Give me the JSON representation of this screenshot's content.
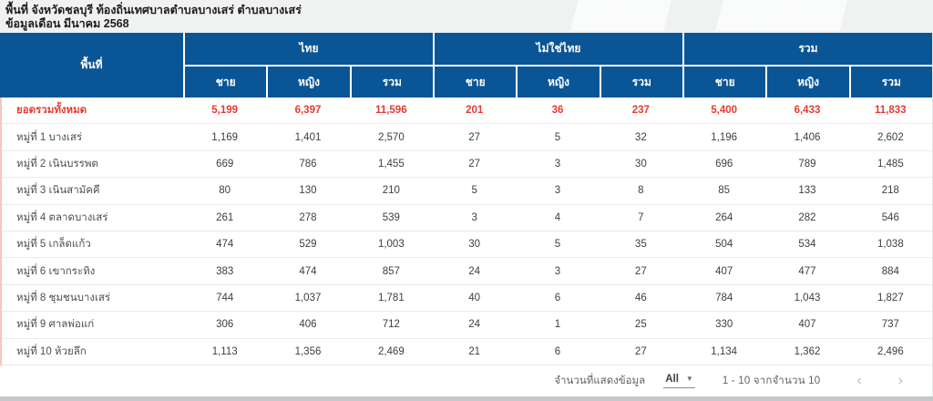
{
  "header": {
    "title": "พื้นที่ จังหวัดชลบุรี ท้องถิ่นเทศบาลตำบลบางเสร่ ตำบลบางเสร่",
    "subtitle": "ข้อมูลเดือน มีนาคม 2568"
  },
  "table": {
    "area_header": "พื้นที่",
    "groups": [
      {
        "label": "ไทย"
      },
      {
        "label": "ไม่ใช่ไทย"
      },
      {
        "label": "รวม"
      }
    ],
    "sub_headers": [
      "ชาย",
      "หญิง",
      "รวม"
    ],
    "rows": [
      {
        "area": "ยอดรวมทั้งหมด",
        "is_total": true,
        "values": [
          "5,199",
          "6,397",
          "11,596",
          "201",
          "36",
          "237",
          "5,400",
          "6,433",
          "11,833"
        ]
      },
      {
        "area": "หมู่ที่ 1 บางเสร่",
        "is_total": false,
        "values": [
          "1,169",
          "1,401",
          "2,570",
          "27",
          "5",
          "32",
          "1,196",
          "1,406",
          "2,602"
        ]
      },
      {
        "area": "หมู่ที่ 2 เนินบรรพต",
        "is_total": false,
        "values": [
          "669",
          "786",
          "1,455",
          "27",
          "3",
          "30",
          "696",
          "789",
          "1,485"
        ]
      },
      {
        "area": "หมู่ที่ 3 เนินสามัคคี",
        "is_total": false,
        "values": [
          "80",
          "130",
          "210",
          "5",
          "3",
          "8",
          "85",
          "133",
          "218"
        ]
      },
      {
        "area": "หมู่ที่ 4 ตลาดบางเสร่",
        "is_total": false,
        "values": [
          "261",
          "278",
          "539",
          "3",
          "4",
          "7",
          "264",
          "282",
          "546"
        ]
      },
      {
        "area": "หมู่ที่ 5 เกล็ดแก้ว",
        "is_total": false,
        "values": [
          "474",
          "529",
          "1,003",
          "30",
          "5",
          "35",
          "504",
          "534",
          "1,038"
        ]
      },
      {
        "area": "หมู่ที่ 6 เขากระทิง",
        "is_total": false,
        "values": [
          "383",
          "474",
          "857",
          "24",
          "3",
          "27",
          "407",
          "477",
          "884"
        ]
      },
      {
        "area": "หมู่ที่ 8 ชุมชนบางเสร่",
        "is_total": false,
        "values": [
          "744",
          "1,037",
          "1,781",
          "40",
          "6",
          "46",
          "784",
          "1,043",
          "1,827"
        ]
      },
      {
        "area": "หมู่ที่ 9 ศาลพ่อแก่",
        "is_total": false,
        "values": [
          "306",
          "406",
          "712",
          "24",
          "1",
          "25",
          "330",
          "407",
          "737"
        ]
      },
      {
        "area": "หมู่ที่ 10 ห้วยลึก",
        "is_total": false,
        "values": [
          "1,113",
          "1,356",
          "2,469",
          "21",
          "6",
          "27",
          "1,134",
          "1,362",
          "2,496"
        ]
      }
    ]
  },
  "footer": {
    "page_size_label": "จำนวนที่แสดงข้อมูล",
    "page_size_value": "All",
    "dropdown_icon": "▼",
    "range_text": "1 - 10 จากจำนวน 10",
    "prev_icon": "‹",
    "next_icon": "›"
  },
  "colors": {
    "header_blue": "#0a5596",
    "total_red": "#e33b32",
    "left_accent_pink": "#f6c5c0",
    "page_background": "#f0f1f1",
    "row_border": "#e9eaeb"
  }
}
